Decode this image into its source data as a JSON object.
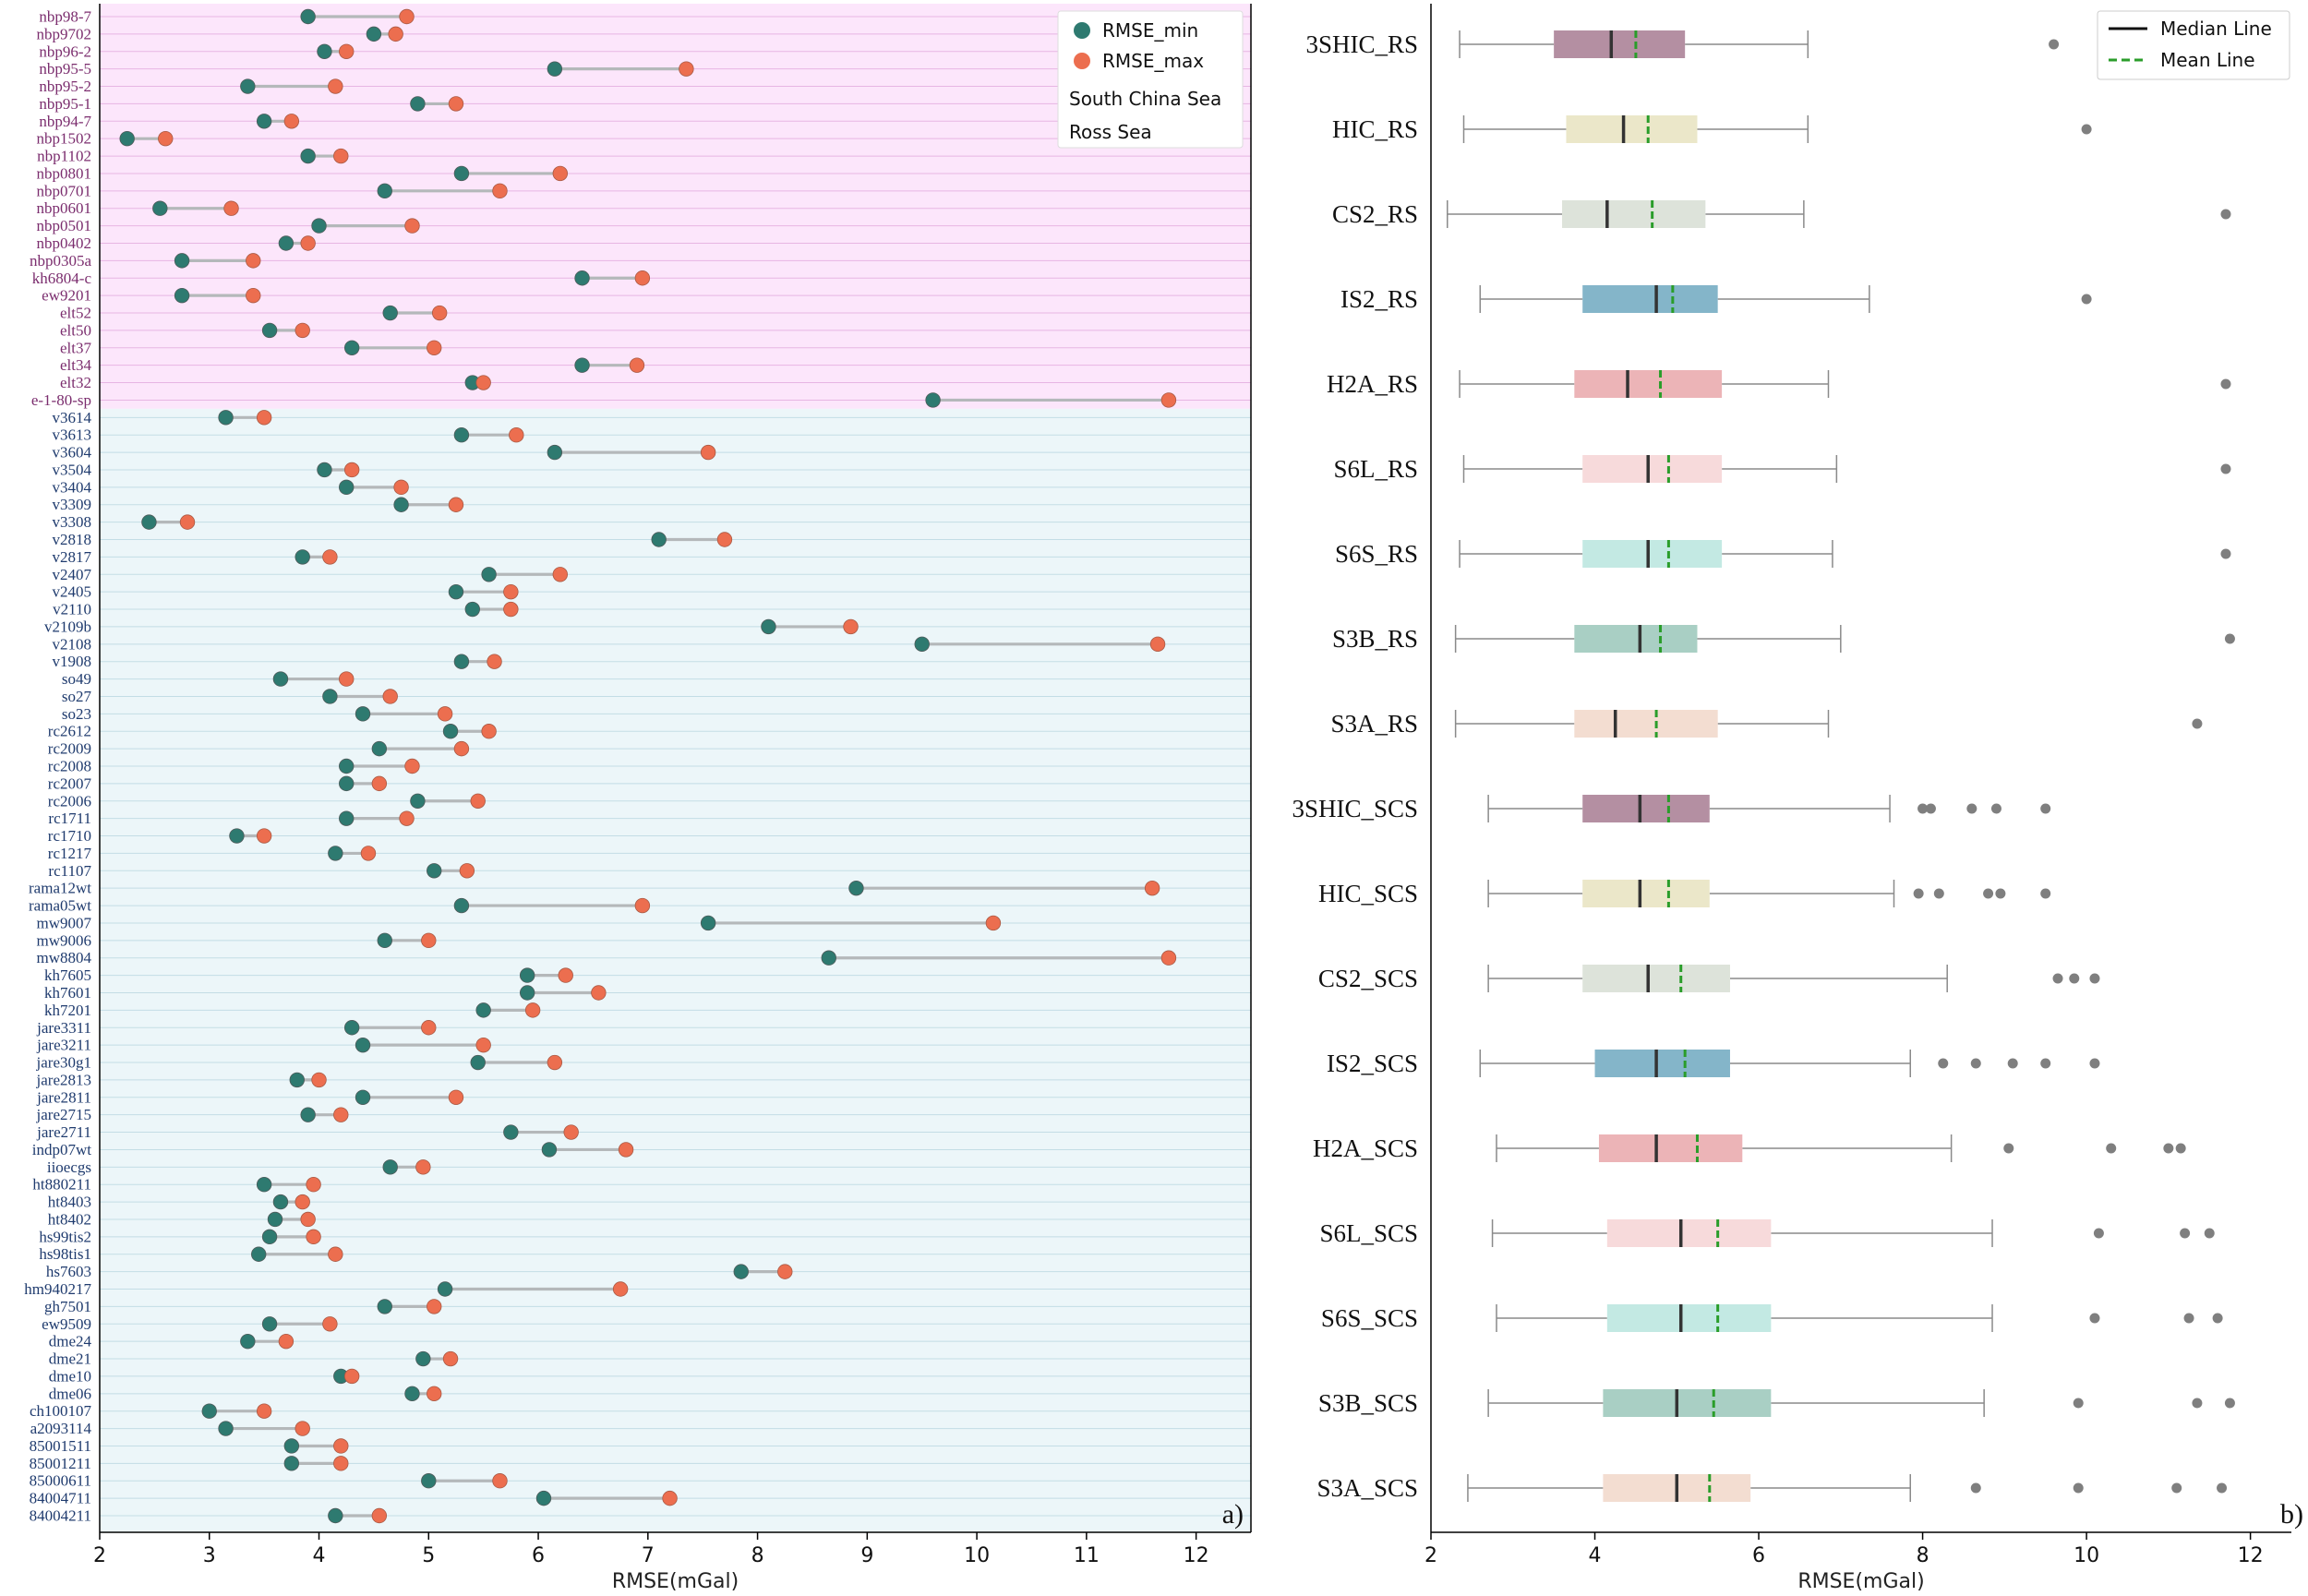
{
  "colors": {
    "min_dot": "#2e7a70",
    "max_dot": "#ec6e4f",
    "connector": "#b4b8ba",
    "ross_bg": "#fce6fb",
    "scs_bg": "#ecf6f9",
    "ross_text": "#7b2d6e",
    "scs_text": "#1f3b6e",
    "median_line": "#333333",
    "mean_line": "#2a9d2a",
    "flier": "#7f7f7f",
    "whisker": "#8a8a8a"
  },
  "chart_data": [
    {
      "type": "dumbbell",
      "panel_label": "a)",
      "xlabel": "RMSE(mGal)",
      "xlim": [
        2,
        12.5
      ],
      "xticks": [
        "2",
        "3",
        "4",
        "5",
        "6",
        "7",
        "8",
        "9",
        "10",
        "11",
        "12"
      ],
      "legend": {
        "min_label": "RMSE_min",
        "max_label": "RMSE_max",
        "scs_label": "South China Sea",
        "ross_label": "Ross Sea"
      },
      "regions": [
        {
          "name": "Ross Sea",
          "key": "ross",
          "labels": [
            "nbp98-7",
            "nbp9702",
            "nbp96-2",
            "nbp95-5",
            "nbp95-2",
            "nbp95-1",
            "nbp94-7",
            "nbp1502",
            "nbp1102",
            "nbp0801",
            "nbp0701",
            "nbp0601",
            "nbp0501",
            "nbp0402",
            "nbp0305a",
            "kh6804-c",
            "ew9201",
            "elt52",
            "elt50",
            "elt37",
            "elt34",
            "elt32",
            "e-1-80-sp"
          ],
          "min": [
            3.9,
            4.5,
            4.05,
            6.15,
            3.35,
            4.9,
            3.5,
            2.25,
            3.9,
            5.3,
            4.6,
            2.55,
            4.0,
            3.7,
            2.75,
            6.4,
            2.75,
            4.65,
            3.55,
            4.3,
            6.4,
            5.4,
            9.6
          ],
          "max": [
            4.8,
            4.7,
            4.25,
            7.35,
            4.15,
            5.25,
            3.75,
            2.6,
            4.2,
            6.2,
            5.65,
            3.2,
            4.85,
            3.9,
            3.4,
            6.95,
            3.4,
            5.1,
            3.85,
            5.05,
            6.9,
            5.5,
            11.75
          ]
        },
        {
          "name": "South China Sea",
          "key": "scs",
          "labels": [
            "v3614",
            "v3613",
            "v3604",
            "v3504",
            "v3404",
            "v3309",
            "v3308",
            "v2818",
            "v2817",
            "v2407",
            "v2405",
            "v2110",
            "v2109b",
            "v2108",
            "v1908",
            "so49",
            "so27",
            "so23",
            "rc2612",
            "rc2009",
            "rc2008",
            "rc2007",
            "rc2006",
            "rc1711",
            "rc1710",
            "rc1217",
            "rc1107",
            "rama12wt",
            "rama05wt",
            "mw9007",
            "mw9006",
            "mw8804",
            "kh7605",
            "kh7601",
            "kh7201",
            "jare3311",
            "jare3211",
            "jare30g1",
            "jare2813",
            "jare2811",
            "jare2715",
            "jare2711",
            "indp07wt",
            "iioecgs",
            "ht880211",
            "ht8403",
            "ht8402",
            "hs99tis2",
            "hs98tis1",
            "hs7603",
            "hm940217",
            "gh7501",
            "ew9509",
            "dme24",
            "dme21",
            "dme10",
            "dme06",
            "ch100107",
            "a2093114",
            "85001511",
            "85001211",
            "85000611",
            "84004711",
            "84004211"
          ],
          "min": [
            3.15,
            5.3,
            6.15,
            4.05,
            4.25,
            4.75,
            2.45,
            7.1,
            3.85,
            5.55,
            5.25,
            5.4,
            8.1,
            9.5,
            5.3,
            3.65,
            4.1,
            4.4,
            5.2,
            4.55,
            4.25,
            4.25,
            4.9,
            4.25,
            3.25,
            4.15,
            5.05,
            8.9,
            5.3,
            7.55,
            4.6,
            8.65,
            5.9,
            5.9,
            5.5,
            4.3,
            4.4,
            5.45,
            3.8,
            4.4,
            3.9,
            5.75,
            6.1,
            4.65,
            3.5,
            3.65,
            3.6,
            3.55,
            3.45,
            7.85,
            5.15,
            4.6,
            3.55,
            3.35,
            4.95,
            4.2,
            4.85,
            3.0,
            3.15,
            3.75,
            3.75,
            5.0,
            6.05,
            4.15
          ],
          "max": [
            3.5,
            5.8,
            7.55,
            4.3,
            4.75,
            5.25,
            2.8,
            7.7,
            4.1,
            6.2,
            5.75,
            5.75,
            8.85,
            11.65,
            5.6,
            4.25,
            4.65,
            5.15,
            5.55,
            5.3,
            4.85,
            4.55,
            5.45,
            4.8,
            3.5,
            4.45,
            5.35,
            11.6,
            6.95,
            10.15,
            5.0,
            11.75,
            6.25,
            6.55,
            5.95,
            5.0,
            5.5,
            6.15,
            4.0,
            5.25,
            4.2,
            6.3,
            6.8,
            4.95,
            3.95,
            3.85,
            3.9,
            3.95,
            4.15,
            8.25,
            6.75,
            5.05,
            4.1,
            3.7,
            5.2,
            4.3,
            5.05,
            3.5,
            3.85,
            4.2,
            4.2,
            5.65,
            7.2,
            4.55
          ]
        }
      ]
    },
    {
      "type": "boxplot",
      "panel_label": "b)",
      "xlabel": "RMSE(mGal)",
      "xlim": [
        2,
        12.5
      ],
      "xticks": [
        "2",
        "4",
        "6",
        "8",
        "10",
        "12"
      ],
      "legend": {
        "median_label": "Median Line",
        "mean_label": "Mean Line"
      },
      "series": [
        {
          "name": "3SHIC_RS",
          "color": "#b48fa2",
          "whislo": 2.35,
          "q1": 3.5,
          "med": 4.2,
          "mean": 4.5,
          "q3": 5.1,
          "whishi": 6.6,
          "fliers": [
            9.6
          ]
        },
        {
          "name": "HIC_RS",
          "color": "#ebe7c9",
          "whislo": 2.4,
          "q1": 3.65,
          "med": 4.35,
          "mean": 4.65,
          "q3": 5.25,
          "whishi": 6.6,
          "fliers": [
            10.0
          ]
        },
        {
          "name": "CS2_RS",
          "color": "#dde3da",
          "whislo": 2.2,
          "q1": 3.6,
          "med": 4.15,
          "mean": 4.7,
          "q3": 5.35,
          "whishi": 6.55,
          "fliers": [
            11.7
          ]
        },
        {
          "name": "IS2_RS",
          "color": "#84b5c9",
          "whislo": 2.6,
          "q1": 3.85,
          "med": 4.75,
          "mean": 4.95,
          "q3": 5.5,
          "whishi": 7.35,
          "fliers": [
            10.0
          ]
        },
        {
          "name": "H2A_RS",
          "color": "#ecb4b7",
          "whislo": 2.35,
          "q1": 3.75,
          "med": 4.4,
          "mean": 4.8,
          "q3": 5.55,
          "whishi": 6.85,
          "fliers": [
            11.7
          ]
        },
        {
          "name": "S6L_RS",
          "color": "#f7dadb",
          "whislo": 2.4,
          "q1": 3.85,
          "med": 4.65,
          "mean": 4.9,
          "q3": 5.55,
          "whishi": 6.95,
          "fliers": [
            11.7
          ]
        },
        {
          "name": "S6S_RS",
          "color": "#c3e9e3",
          "whislo": 2.35,
          "q1": 3.85,
          "med": 4.65,
          "mean": 4.9,
          "q3": 5.55,
          "whishi": 6.9,
          "fliers": [
            11.7
          ]
        },
        {
          "name": "S3B_RS",
          "color": "#a9cfc4",
          "whislo": 2.3,
          "q1": 3.75,
          "med": 4.55,
          "mean": 4.8,
          "q3": 5.25,
          "whishi": 7.0,
          "fliers": [
            11.75
          ]
        },
        {
          "name": "S3A_RS",
          "color": "#f3ddd1",
          "whislo": 2.3,
          "q1": 3.75,
          "med": 4.25,
          "mean": 4.75,
          "q3": 5.5,
          "whishi": 6.85,
          "fliers": [
            11.35
          ]
        },
        {
          "name": "3SHIC_SCS",
          "color": "#b48fa2",
          "whislo": 2.7,
          "q1": 3.85,
          "med": 4.55,
          "mean": 4.9,
          "q3": 5.4,
          "whishi": 7.6,
          "fliers": [
            8.0,
            8.1,
            8.6,
            8.9,
            9.5
          ]
        },
        {
          "name": "HIC_SCS",
          "color": "#ebe7c9",
          "whislo": 2.7,
          "q1": 3.85,
          "med": 4.55,
          "mean": 4.9,
          "q3": 5.4,
          "whishi": 7.65,
          "fliers": [
            7.95,
            8.2,
            8.8,
            8.95,
            9.5
          ]
        },
        {
          "name": "CS2_SCS",
          "color": "#dde3da",
          "whislo": 2.7,
          "q1": 3.85,
          "med": 4.65,
          "mean": 5.05,
          "q3": 5.65,
          "whishi": 8.3,
          "fliers": [
            9.65,
            9.85,
            10.1
          ]
        },
        {
          "name": "IS2_SCS",
          "color": "#84b5c9",
          "whislo": 2.6,
          "q1": 4.0,
          "med": 4.75,
          "mean": 5.1,
          "q3": 5.65,
          "whishi": 7.85,
          "fliers": [
            8.25,
            8.65,
            9.1,
            9.5,
            10.1
          ]
        },
        {
          "name": "H2A_SCS",
          "color": "#ecb4b7",
          "whislo": 2.8,
          "q1": 4.05,
          "med": 4.75,
          "mean": 5.25,
          "q3": 5.8,
          "whishi": 8.35,
          "fliers": [
            9.05,
            10.3,
            11.0,
            11.15
          ]
        },
        {
          "name": "S6L_SCS",
          "color": "#f7dadb",
          "whislo": 2.75,
          "q1": 4.15,
          "med": 5.05,
          "mean": 5.5,
          "q3": 6.15,
          "whishi": 8.85,
          "fliers": [
            10.15,
            11.2,
            11.5
          ]
        },
        {
          "name": "S6S_SCS",
          "color": "#c3e9e3",
          "whislo": 2.8,
          "q1": 4.15,
          "med": 5.05,
          "mean": 5.5,
          "q3": 6.15,
          "whishi": 8.85,
          "fliers": [
            10.1,
            11.25,
            11.6
          ]
        },
        {
          "name": "S3B_SCS",
          "color": "#a9cfc4",
          "whislo": 2.7,
          "q1": 4.1,
          "med": 5.0,
          "mean": 5.45,
          "q3": 6.15,
          "whishi": 8.75,
          "fliers": [
            9.9,
            11.35,
            11.75
          ]
        },
        {
          "name": "S3A_SCS",
          "color": "#f3ddd1",
          "whislo": 2.45,
          "q1": 4.1,
          "med": 5.0,
          "mean": 5.4,
          "q3": 5.9,
          "whishi": 7.85,
          "fliers": [
            8.65,
            9.9,
            11.1,
            11.65
          ]
        }
      ]
    }
  ]
}
